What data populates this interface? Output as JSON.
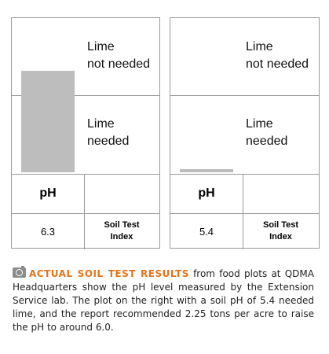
{
  "panels": [
    {
      "top_label": "Lime\nnot needed",
      "mid_label": "Lime\nneeded",
      "ph_header": "pH",
      "ph_value": "6.3",
      "index_label": "Soil Test\nIndex",
      "bar_level": 0.65
    },
    {
      "top_label": "Lime\nnot needed",
      "mid_label": "Lime\nneeded",
      "ph_header": "pH",
      "ph_value": "5.4",
      "index_label": "Soil Test\nIndex",
      "bar_level": 0.02
    }
  ],
  "caption": {
    "icon": "camera-icon",
    "heading": "ACTUAL SOIL TEST RESULTS",
    "body": " from food plots at QDMA Headquarters show the pH level measured by the Extension Service lab. The plot on the right with a soil pH of 5.4 needed lime, and the report recommended 2.25 tons per acre to raise the pH to around 6.0."
  },
  "colors": {
    "bar": "#bdbdbd",
    "heading": "#e2741a",
    "border": "#9a9a9a"
  }
}
